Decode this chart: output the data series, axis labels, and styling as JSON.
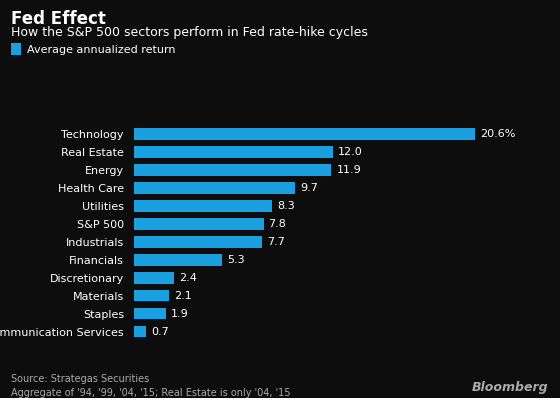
{
  "title": "Fed Effect",
  "subtitle": "How the S&P 500 sectors perform in Fed rate-hike cycles",
  "legend_label": "Average annualized return",
  "categories": [
    "Technology",
    "Real Estate",
    "Energy",
    "Health Care",
    "Utilities",
    "S&P 500",
    "Industrials",
    "Financials",
    "Discretionary",
    "Materials",
    "Staples",
    "Communication Services"
  ],
  "values": [
    20.6,
    12.0,
    11.9,
    9.7,
    8.3,
    7.8,
    7.7,
    5.3,
    2.4,
    2.1,
    1.9,
    0.7
  ],
  "value_labels": [
    "20.6%",
    "12.0",
    "11.9",
    "9.7",
    "8.3",
    "7.8",
    "7.7",
    "5.3",
    "2.4",
    "2.1",
    "1.9",
    "0.7"
  ],
  "bar_color": "#1a9fe0",
  "background_color": "#0d0d0d",
  "text_color": "#ffffff",
  "muted_color": "#aaaaaa",
  "source_text": "Source: Strategas Securities\nAggregate of '94, '99, '04, '15; Real Estate is only '04, '15",
  "bloomberg_text": "Bloomberg",
  "xlim": [
    0,
    23
  ],
  "title_fontsize": 12,
  "subtitle_fontsize": 9,
  "label_fontsize": 8,
  "value_fontsize": 8,
  "source_fontsize": 7,
  "legend_fontsize": 8
}
